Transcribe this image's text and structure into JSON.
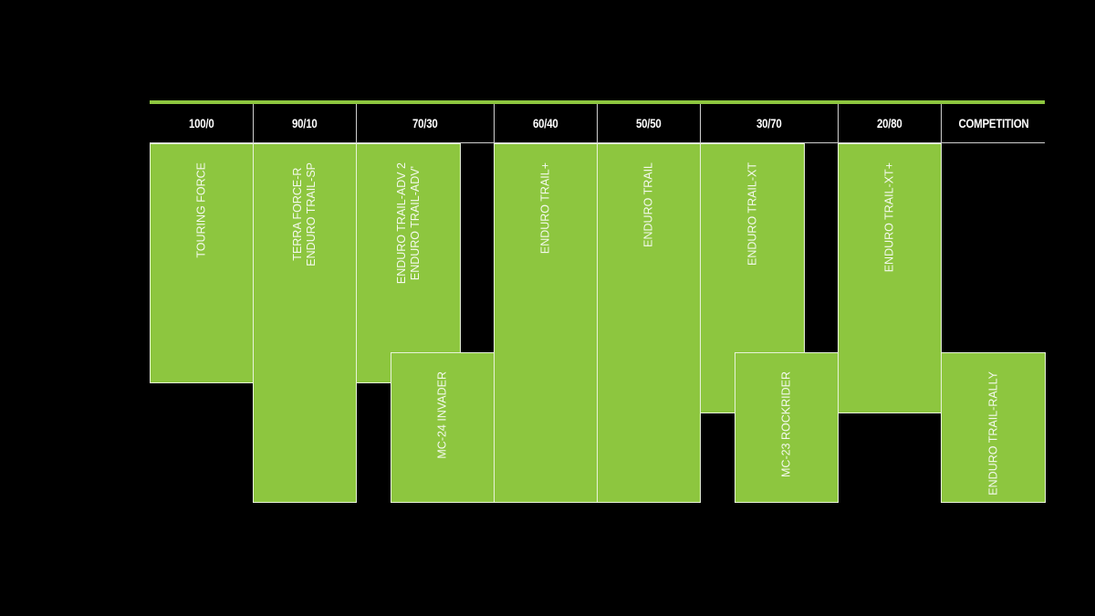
{
  "colors": {
    "accent": "#8dc63f",
    "background": "#000000",
    "text": "#ffffff"
  },
  "headers": [
    "100/0",
    "90/10",
    "70/30",
    "60/40",
    "50/50",
    "30/70",
    "20/80",
    "COMPETITION"
  ],
  "products": [
    {
      "label": "TOURING FORCE",
      "column": "100/0"
    },
    {
      "label": "TERRA FORCE-R\nENDURO TRAIL-SP",
      "column": "90/10"
    },
    {
      "label": "ENDURO TRAIL-ADV 2\nENDURO TRAIL-ADV'",
      "column": "70/30"
    },
    {
      "label": "MC-24 INVADER",
      "column": "70/30 – 60/40"
    },
    {
      "label": "ENDURO TRAIL+",
      "column": "60/40"
    },
    {
      "label": "ENDURO TRAIL",
      "column": "50/50"
    },
    {
      "label": "ENDURO TRAIL-XT",
      "column": "30/70"
    },
    {
      "label": "MC-23 ROCKRIDER",
      "column": "30/70 – 20/80"
    },
    {
      "label": "ENDURO TRAIL-XT+",
      "column": "20/80"
    },
    {
      "label": "ENDURO TRAIL-RALLY",
      "column": "COMPETITION"
    }
  ]
}
